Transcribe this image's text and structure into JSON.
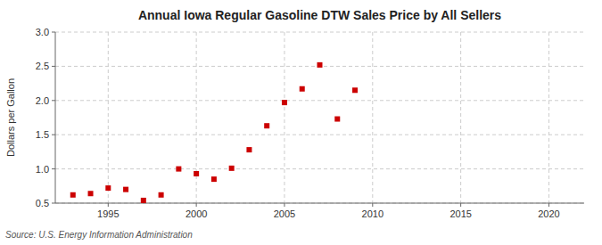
{
  "chart_data": {
    "type": "scatter",
    "title": "Annual Iowa Regular Gasoline DTW Sales Price by All Sellers",
    "ylabel": "Dollars per Gallon",
    "source": "Source: U.S. Energy Information Administration",
    "x": [
      1993,
      1994,
      1995,
      1996,
      1997,
      1998,
      1999,
      2000,
      2001,
      2002,
      2003,
      2004,
      2005,
      2006,
      2007,
      2008,
      2009
    ],
    "values": [
      0.62,
      0.64,
      0.72,
      0.7,
      0.54,
      0.62,
      1.0,
      0.93,
      0.85,
      1.01,
      1.28,
      1.63,
      1.97,
      2.17,
      2.52,
      1.73,
      2.15
    ],
    "color": "#cc0000",
    "marker": "square",
    "xlim": [
      1992,
      2022
    ],
    "ylim": [
      0.5,
      3.0
    ],
    "xticks": [
      1995,
      2000,
      2005,
      2010,
      2015,
      2020
    ],
    "yticks": [
      0.5,
      {
        "value": 1,
        "label": "1.0"
      },
      1.5,
      {
        "value": 2,
        "label": "2.0"
      },
      2.5,
      {
        "value": 3,
        "label": "3.0"
      }
    ],
    "grid": true
  }
}
